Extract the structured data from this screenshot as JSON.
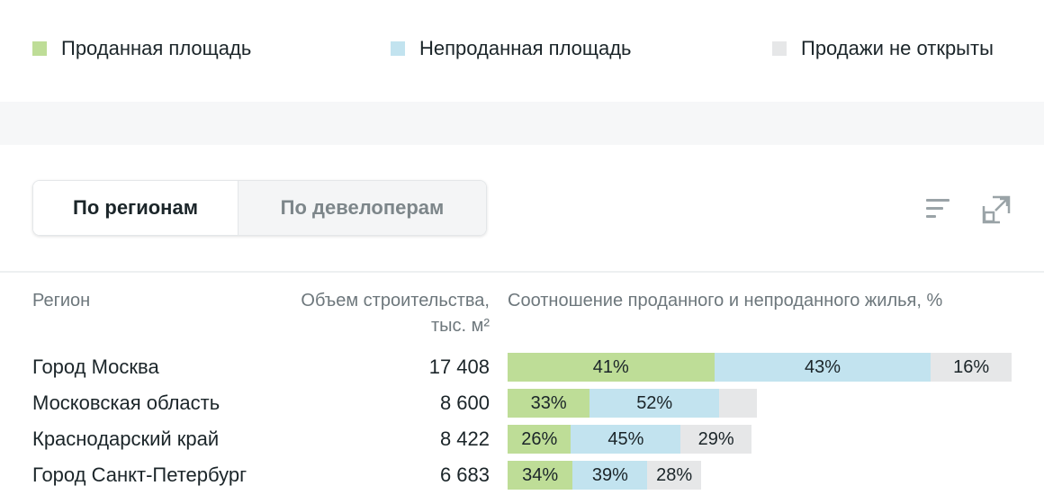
{
  "legend": {
    "items": [
      {
        "label": "Проданная площадь",
        "color": "#bedd97"
      },
      {
        "label": "Непроданная площадь",
        "color": "#c2e3ef"
      },
      {
        "label": "Продажи не открыты",
        "color": "#e6e7e8"
      }
    ]
  },
  "tabs": {
    "by_region": "По регионам",
    "by_developer": "По девелоперам"
  },
  "toolbar": {
    "sort_icon": "sort-icon",
    "expand_icon": "expand-icon"
  },
  "table": {
    "headers": {
      "region": "Регион",
      "volume_line1": "Объем строительства,",
      "volume_line2": "тыс. м²",
      "ratio": "Соотношение проданного и непроданного жилья, %"
    },
    "rows": [
      {
        "region": "Город Москва",
        "volume": "17 408",
        "sold": 41,
        "unsold": 43,
        "not_open": 16,
        "sold_label": "41%",
        "unsold_label": "43%",
        "not_open_label": "16%"
      },
      {
        "region": "Московская область",
        "volume": "8 600",
        "sold": 33,
        "unsold": 52,
        "not_open": 15,
        "sold_label": "33%",
        "unsold_label": "52%",
        "not_open_label": ""
      },
      {
        "region": "Краснодарский край",
        "volume": "8 422",
        "sold": 26,
        "unsold": 45,
        "not_open": 29,
        "sold_label": "26%",
        "unsold_label": "45%",
        "not_open_label": "29%"
      },
      {
        "region": "Город Санкт-Петербург",
        "volume": "6 683",
        "sold": 34,
        "unsold": 39,
        "not_open": 28,
        "sold_label": "34%",
        "unsold_label": "39%",
        "not_open_label": "28%"
      }
    ]
  }
}
